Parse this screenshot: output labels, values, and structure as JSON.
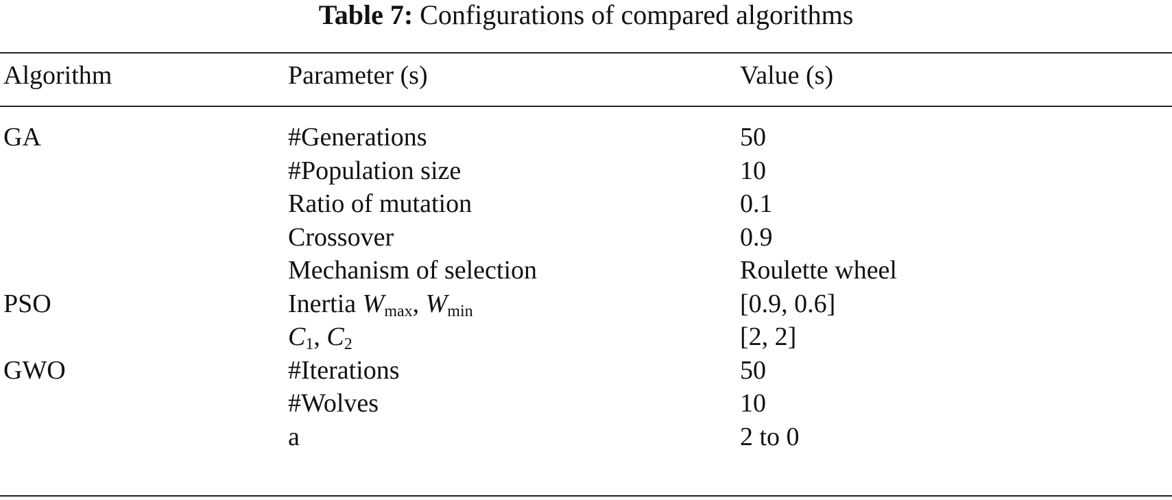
{
  "caption": {
    "label": "Table 7:",
    "text": "Configurations of compared algorithms"
  },
  "table": {
    "header": [
      "Algorithm",
      "Parameter (s)",
      "Value (s)"
    ],
    "rows": [
      [
        "GA",
        [
          {
            "text": "#Generations"
          }
        ],
        "50"
      ],
      [
        null,
        [
          {
            "text": "#Population size"
          }
        ],
        "10"
      ],
      [
        null,
        [
          {
            "text": "Ratio of mutation"
          }
        ],
        "0.1"
      ],
      [
        null,
        [
          {
            "text": "Crossover"
          }
        ],
        "0.9"
      ],
      [
        null,
        [
          {
            "text": "Mechanism of selection"
          }
        ],
        "Roulette wheel"
      ],
      [
        "PSO",
        [
          {
            "text": "Inertia "
          },
          {
            "italic": "W"
          },
          {
            "sub": "max"
          },
          {
            "text": ",  "
          },
          {
            "italic": "W"
          },
          {
            "sub": "min"
          }
        ],
        "[0.9, 0.6]"
      ],
      [
        null,
        [
          {
            "italic": "C"
          },
          {
            "sub": "1"
          },
          {
            "text": ",  "
          },
          {
            "italic": "C"
          },
          {
            "sub": "2"
          }
        ],
        "[2, 2]"
      ],
      [
        "GWO",
        [
          {
            "text": "#Iterations"
          }
        ],
        "50"
      ],
      [
        null,
        [
          {
            "text": "#Wolves"
          }
        ],
        "10"
      ],
      [
        null,
        [
          {
            "text": "a"
          }
        ],
        "2 to 0"
      ]
    ]
  }
}
